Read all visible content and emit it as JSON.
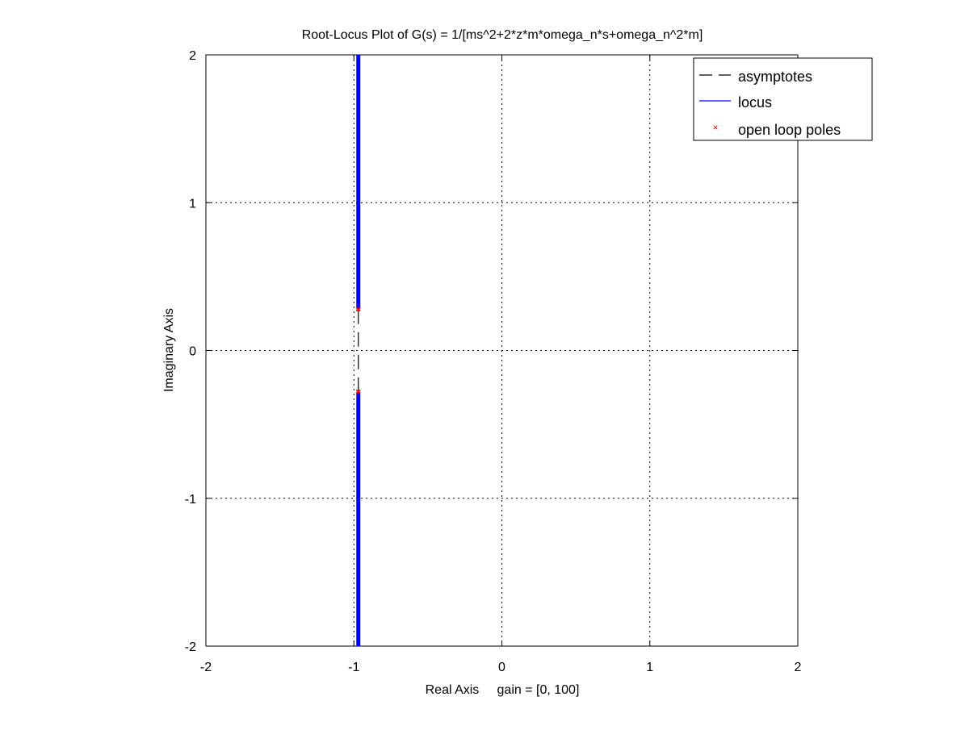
{
  "chart_data": {
    "type": "line",
    "title": "Root-Locus Plot of G(s) = 1/[ms^2+2*z*m*omega_n*s+omega_n^2*m]",
    "xlabel": "Real Axis     gain = [0, 100]",
    "ylabel": "Imaginary Axis",
    "xlim": [
      -2,
      2
    ],
    "ylim": [
      -2,
      2
    ],
    "x_ticks": [
      -2,
      -1,
      0,
      1,
      2
    ],
    "y_ticks": [
      -2,
      -1,
      0,
      1,
      2
    ],
    "x_tick_labels": [
      "-2",
      "-1",
      "0",
      "1",
      "2"
    ],
    "y_tick_labels": [
      "-2",
      "-1",
      "0",
      "1",
      "2"
    ],
    "grid": true,
    "legend_position": "top-right",
    "legend": [
      {
        "label": "asymptotes",
        "style": "dashed",
        "color": "#000000"
      },
      {
        "label": "locus",
        "style": "solid",
        "color": "#0000ff"
      },
      {
        "label": "open loop poles",
        "style": "marker-x",
        "color": "#ff0000"
      }
    ],
    "series": [
      {
        "name": "asymptotes",
        "color": "#000000",
        "x": [
          -0.97,
          -0.97
        ],
        "y": [
          -0.28,
          0.28
        ]
      },
      {
        "name": "locus",
        "color": "#0000ff",
        "branches": [
          {
            "x": [
              -0.97,
              -0.97
            ],
            "y": [
              0.28,
              2.0
            ]
          },
          {
            "x": [
              -0.97,
              -0.97
            ],
            "y": [
              -0.28,
              -2.0
            ]
          }
        ]
      },
      {
        "name": "open loop poles",
        "color": "#ff0000",
        "points": [
          {
            "x": -0.97,
            "y": 0.28
          },
          {
            "x": -0.97,
            "y": -0.28
          }
        ]
      }
    ]
  }
}
